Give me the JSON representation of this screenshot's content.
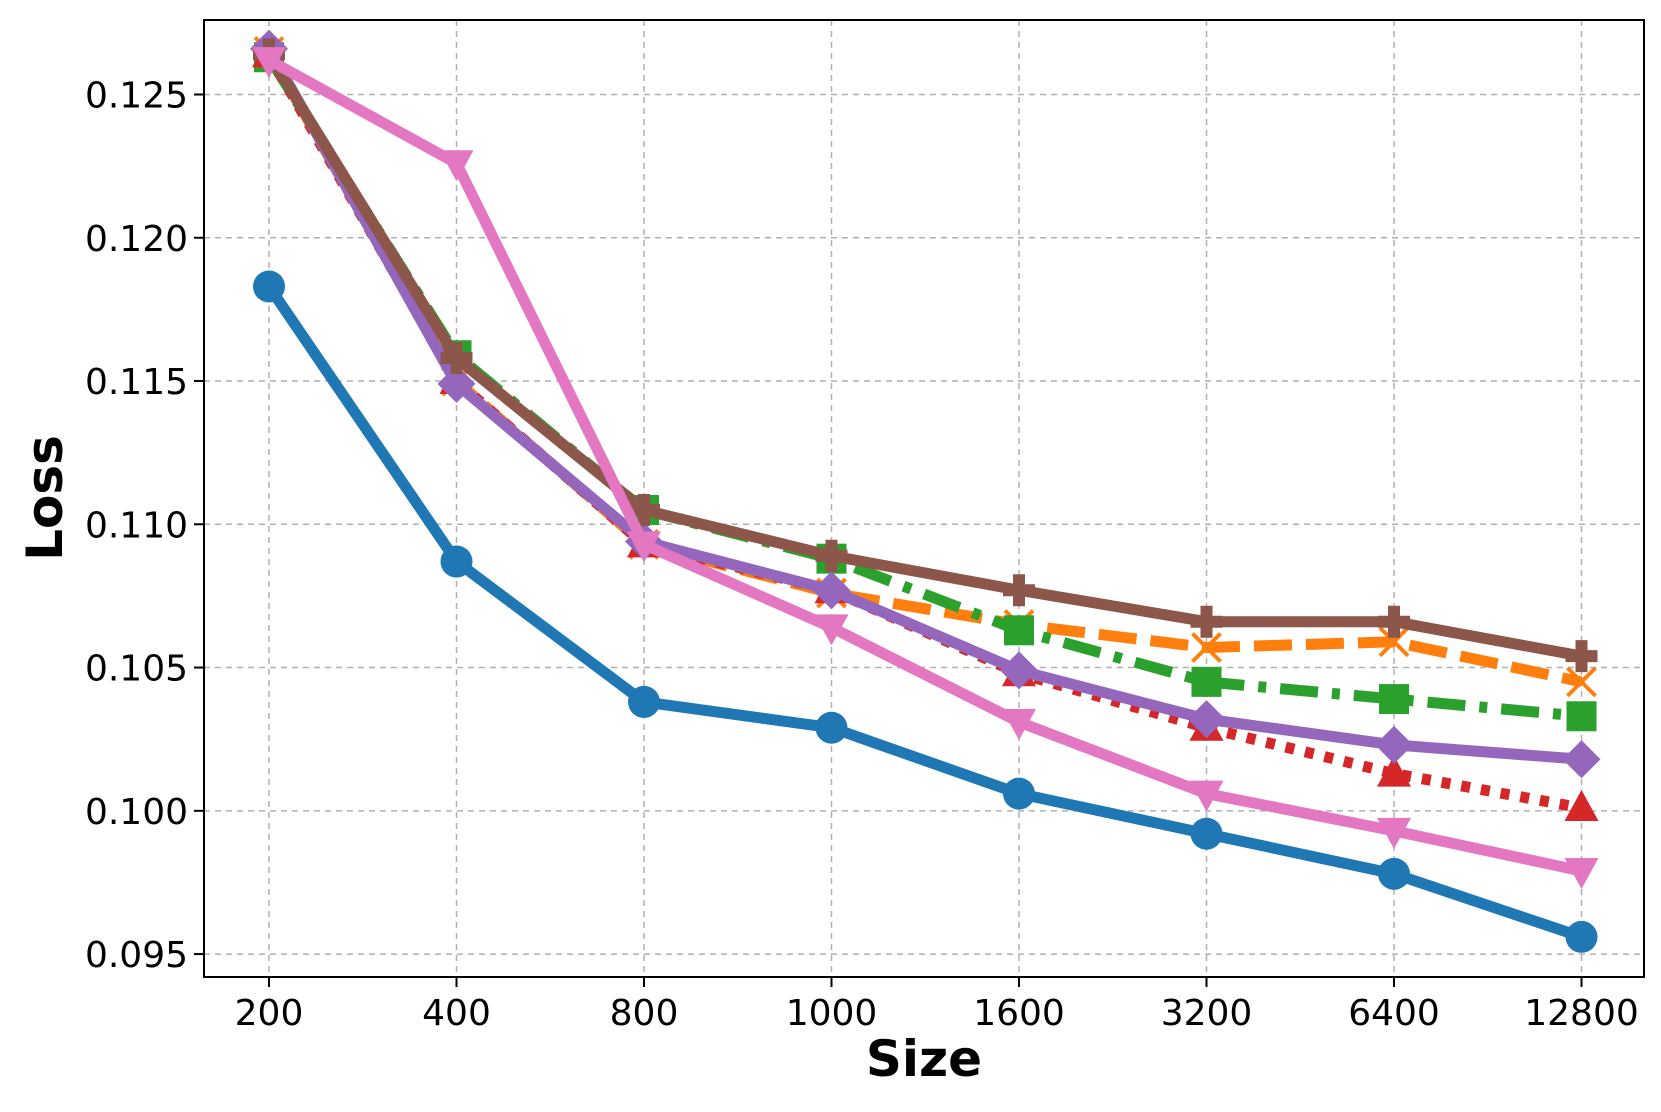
{
  "chart_data": {
    "type": "line",
    "title": "",
    "xlabel": "Size",
    "ylabel": "Loss",
    "categories": [
      "200",
      "400",
      "800",
      "1000",
      "1600",
      "3200",
      "6400",
      "12800"
    ],
    "ylim": [
      0.0942,
      0.1276
    ],
    "yticks": [
      0.095,
      0.1,
      0.105,
      0.11,
      0.115,
      0.12,
      0.125
    ],
    "ytick_labels": [
      "0.095",
      "0.100",
      "0.105",
      "0.110",
      "0.115",
      "0.120",
      "0.125"
    ],
    "grid": true,
    "legend": "none",
    "series": [
      {
        "color": "#1f77b4",
        "dash": "solid",
        "marker": "circle",
        "values": [
          0.1183,
          0.1087,
          0.1038,
          0.1029,
          0.1006,
          0.0992,
          0.0978,
          0.0956
        ]
      },
      {
        "color": "#ff7f0e",
        "dash": "dashed",
        "marker": "x",
        "values": [
          0.1265,
          0.115,
          0.1093,
          0.1076,
          0.1065,
          0.1057,
          0.1059,
          0.1045
        ]
      },
      {
        "color": "#2ca02c",
        "dash": "dashdot",
        "marker": "square",
        "values": [
          0.1263,
          0.1159,
          0.1105,
          0.1088,
          0.1063,
          0.1045,
          0.1039,
          0.1033
        ]
      },
      {
        "color": "#d62728",
        "dash": "dotted",
        "marker": "triangle-up",
        "values": [
          0.1264,
          0.115,
          0.1093,
          0.1077,
          0.1048,
          0.1029,
          0.1013,
          0.1001
        ]
      },
      {
        "color": "#9467bd",
        "dash": "solid",
        "marker": "diamond",
        "values": [
          0.1266,
          0.1149,
          0.1094,
          0.1077,
          0.1049,
          0.1032,
          0.1023,
          0.1018
        ]
      },
      {
        "color": "#8c564b",
        "dash": "solid",
        "marker": "plus",
        "values": [
          0.1264,
          0.1158,
          0.1105,
          0.1089,
          0.1077,
          0.1066,
          0.1066,
          0.1054
        ]
      },
      {
        "color": "#e377c2",
        "dash": "solid",
        "marker": "triangle-down",
        "values": [
          0.1262,
          0.1226,
          0.1093,
          0.1064,
          0.1031,
          0.1006,
          0.0993,
          0.0979
        ]
      }
    ]
  }
}
